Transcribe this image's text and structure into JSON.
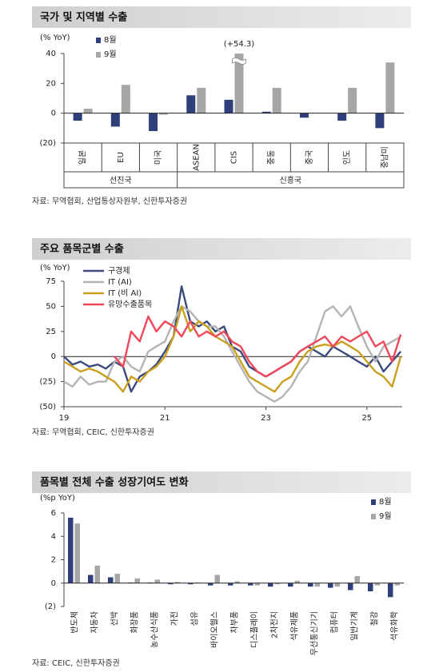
{
  "chart_data": [
    {
      "type": "bar",
      "title": "국가 및 지역별 수출",
      "ylabel": "(% YoY)",
      "categories": [
        "일본",
        "EU",
        "미국",
        "ASEAN",
        "CIS",
        "중동",
        "중국",
        "인도",
        "중남미"
      ],
      "groups": [
        {
          "name": "선진국",
          "categories": [
            "일본",
            "EU",
            "미국"
          ]
        },
        {
          "name": "신흥국",
          "categories": [
            "ASEAN",
            "CIS",
            "중동",
            "중국",
            "인도",
            "중남미"
          ]
        }
      ],
      "series": [
        {
          "name": "8월",
          "color": "#2f3f7a",
          "values": [
            -5,
            -9,
            -12,
            12,
            9,
            1,
            -3,
            -5,
            -10
          ]
        },
        {
          "name": "9월",
          "color": "#a6a6a6",
          "values": [
            3,
            19,
            -1,
            17,
            54.3,
            17,
            0,
            17,
            34
          ],
          "value_labels": [
            null,
            null,
            null,
            null,
            "(+54.3)",
            null,
            null,
            null,
            null
          ]
        }
      ],
      "ylim": [
        -20,
        40
      ],
      "yticks": [
        40,
        20,
        0,
        {
          "value": -20,
          "label": "(20)"
        }
      ],
      "source": "자료: 무역협회, 산업통상자원부, 신한투자증권"
    },
    {
      "type": "line",
      "title": "주요 품목군별 수출",
      "ylabel": "(% YoY)",
      "x": [
        19,
        19.17,
        19.33,
        19.5,
        19.67,
        19.83,
        20,
        20.17,
        20.33,
        20.5,
        20.67,
        20.83,
        21,
        21.17,
        21.33,
        21.5,
        21.67,
        21.83,
        22,
        22.17,
        22.33,
        22.5,
        22.67,
        22.83,
        23,
        23.17,
        23.33,
        23.5,
        23.67,
        23.83,
        24,
        24.17,
        24.33,
        24.5,
        24.67,
        24.83,
        25,
        25.17,
        25.33,
        25.5,
        25.67
      ],
      "xlim": [
        19,
        25.7
      ],
      "xticks": [
        19,
        21,
        23,
        25
      ],
      "series": [
        {
          "name": "구경제",
          "color": "#3c4a7c",
          "values": [
            0,
            -8,
            -5,
            -10,
            -8,
            -12,
            -5,
            -10,
            -35,
            -20,
            -15,
            -8,
            5,
            20,
            70,
            35,
            30,
            35,
            25,
            30,
            10,
            5,
            -10,
            -15,
            -20,
            -15,
            -10,
            -5,
            5,
            10,
            5,
            0,
            10,
            5,
            0,
            -5,
            -10,
            0,
            -15,
            -5,
            5
          ]
        },
        {
          "name": "IT (AI)",
          "color": "#b4b4b4",
          "values": [
            -25,
            -30,
            -20,
            -28,
            -25,
            -25,
            -5,
            0,
            -10,
            -15,
            5,
            10,
            15,
            35,
            50,
            45,
            35,
            30,
            30,
            20,
            5,
            -10,
            -25,
            -35,
            -40,
            -45,
            -40,
            -30,
            -15,
            -5,
            20,
            45,
            50,
            40,
            50,
            30,
            10,
            -5,
            10,
            15,
            20
          ]
        },
        {
          "name": "IT (비 AI)",
          "color": "#c9a01e",
          "values": [
            -5,
            -10,
            -15,
            -12,
            -15,
            -20,
            -25,
            -35,
            -20,
            -25,
            -15,
            -10,
            0,
            20,
            50,
            25,
            35,
            30,
            20,
            15,
            10,
            -5,
            -20,
            -25,
            -30,
            -35,
            -25,
            -20,
            -5,
            5,
            10,
            12,
            10,
            15,
            10,
            5,
            -5,
            -15,
            -20,
            -30,
            0
          ]
        },
        {
          "name": "유망수출품목",
          "color": "#f0485a",
          "values": [
            null,
            null,
            null,
            null,
            null,
            null,
            0,
            -10,
            25,
            15,
            40,
            25,
            35,
            30,
            20,
            35,
            20,
            25,
            20,
            25,
            15,
            10,
            -5,
            -15,
            -20,
            -15,
            -10,
            -5,
            5,
            10,
            15,
            20,
            10,
            20,
            15,
            20,
            25,
            10,
            15,
            -5,
            22
          ]
        }
      ],
      "ylim": [
        -50,
        75
      ],
      "yticks": [
        75,
        50,
        25,
        0,
        {
          "value": -25,
          "label": "(25)"
        },
        {
          "value": -50,
          "label": "(50)"
        }
      ],
      "source": "자료: 무역협회, CEIC, 신한투자증권"
    },
    {
      "type": "bar",
      "title": "품목별 전체 수출 성장기여도 변화",
      "ylabel": "(%p YoY)",
      "categories": [
        "반도체",
        "자동차",
        "선박",
        "화장품",
        "농수산식품",
        "가전",
        "섬유",
        "바이오헬스",
        "차부품",
        "디스플레이",
        "2차전지",
        "석유제품",
        "무선통신기기",
        "컴퓨터",
        "일반기계",
        "철강",
        "석유화학"
      ],
      "series": [
        {
          "name": "8월",
          "color": "#2f3f7a",
          "values": [
            5.6,
            0.7,
            0.5,
            0.05,
            0.05,
            -0.1,
            -0.1,
            -0.2,
            -0.2,
            -0.2,
            -0.3,
            -0.3,
            -0.3,
            -0.4,
            -0.6,
            -0.7,
            -1.2
          ]
        },
        {
          "name": "9월",
          "color": "#a6a6a6",
          "values": [
            5.1,
            1.5,
            0.8,
            0.4,
            0.3,
            0.1,
            0.05,
            0.7,
            0.15,
            -0.2,
            -0.1,
            0.2,
            -0.3,
            -0.3,
            0.6,
            -0.2,
            -0.2
          ]
        }
      ],
      "ylim": [
        -2,
        6
      ],
      "yticks": [
        6,
        4,
        2,
        0,
        {
          "value": -2,
          "label": "(2)"
        }
      ],
      "source": "자료: CEIC, 신한투자증권"
    }
  ]
}
